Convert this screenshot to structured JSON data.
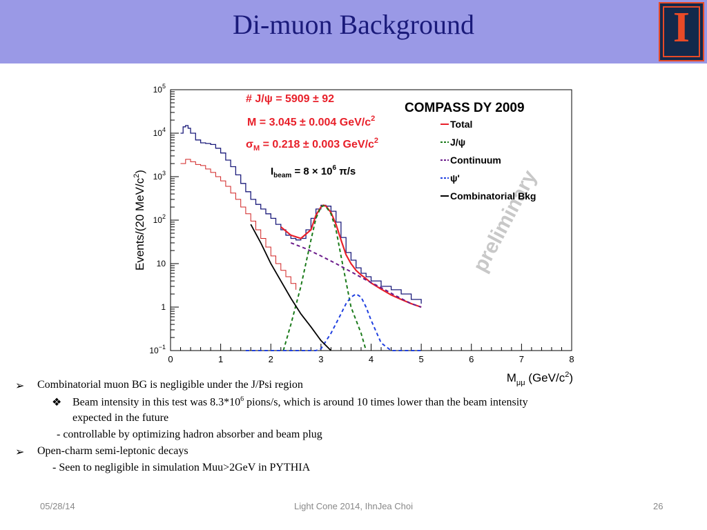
{
  "slide": {
    "title": "Di-muon Background",
    "logo_letter": "I",
    "bullets": [
      {
        "level": 1,
        "marker": "➢",
        "text": "Combinatorial muon BG is negligible under the J/Psi region"
      },
      {
        "level": 2,
        "marker": "❖",
        "text_before": "Beam intensity in this test was 8.3*10",
        "sup": "6",
        "text_after": " pions/s, which is around 10 times lower  than the beam  intensity",
        "continuation": "expected in the future"
      },
      {
        "level": 3,
        "marker": "",
        "text": "- controllable by optimizing hadron absorber and beam plug"
      },
      {
        "level": 1,
        "marker": "➢",
        "text": "Open-charm semi-leptonic decays"
      },
      {
        "level": 3,
        "marker": "",
        "text": "- Seen to negligible in simulation Muu>2GeV in PYTHIA"
      }
    ],
    "footer": {
      "date": "05/28/14",
      "center": "Light Cone 2014, IhnJea Choi",
      "page": "26"
    }
  },
  "chart_data": {
    "type": "line",
    "title": "COMPASS DY 2009",
    "watermark": "preliminary",
    "xlabel": "M",
    "xlabel_sub": "μμ",
    "xlabel_unit": " (GeV/c",
    "xlabel_unit_sup": "2",
    "xlabel_unit_close": ")",
    "ylabel": "Events/(20 MeV/c",
    "ylabel_sup": "2",
    "ylabel_close": ")",
    "xlim": [
      0,
      8
    ],
    "ylim_log10": [
      -1,
      5
    ],
    "yscale": "log",
    "x_ticks": [
      "0",
      "1",
      "2",
      "3",
      "4",
      "5",
      "6",
      "7",
      "8"
    ],
    "y_ticks": [
      {
        "base": "10",
        "exp": "−1"
      },
      {
        "base": "1",
        "exp": ""
      },
      {
        "base": "10",
        "exp": ""
      },
      {
        "base": "10",
        "exp": "2"
      },
      {
        "base": "10",
        "exp": "3"
      },
      {
        "base": "10",
        "exp": "4"
      },
      {
        "base": "10",
        "exp": "5"
      }
    ],
    "fit_results": [
      {
        "pre": "# J/",
        "greek": "ψ",
        "post": " = 5909 ",
        "pm": "±",
        "tail": " 92"
      },
      {
        "pre": "M = 3.045 ",
        "greek": "",
        "post": "",
        "pm": "±",
        "tail": " 0.004 GeV/c",
        "sup": "2"
      },
      {
        "pre": "",
        "greek": "σ",
        "sub": "M",
        "post": " = 0.218 ",
        "pm": "±",
        "tail": " 0.003 GeV/c",
        "sup": "2"
      }
    ],
    "beam_label": {
      "pre": "I",
      "sub": "beam",
      "post": " = 8 × 10",
      "sup": "6",
      "tail": " π/s"
    },
    "legend": [
      {
        "name": "Total",
        "color": "#e8202a",
        "dash": "solid"
      },
      {
        "name": "J/ψ",
        "color": "#1a7a1a",
        "dash": "dash"
      },
      {
        "name": "Continuum",
        "color": "#6a1a8a",
        "dash": "dash"
      },
      {
        "name": "ψ'",
        "color": "#2040e0",
        "dash": "dash"
      },
      {
        "name": "Combinatorial Bkg",
        "color": "#000000",
        "dash": "solid"
      }
    ],
    "series": [
      {
        "name": "Data",
        "color": "#1a1a7a",
        "x": [
          0.2,
          0.25,
          0.3,
          0.35,
          0.4,
          0.5,
          0.6,
          0.7,
          0.8,
          0.9,
          1.0,
          1.1,
          1.2,
          1.3,
          1.4,
          1.5,
          1.6,
          1.7,
          1.8,
          1.9,
          2.0,
          2.1,
          2.2,
          2.3,
          2.4,
          2.5,
          2.6,
          2.7,
          2.8,
          2.9,
          3.0,
          3.1,
          3.2,
          3.3,
          3.4,
          3.5,
          3.6,
          3.7,
          3.8,
          3.9,
          4.0,
          4.2,
          4.4,
          4.6,
          4.8,
          5.0
        ],
        "y": [
          10000,
          14000,
          15000,
          13000,
          10000,
          7000,
          6000,
          5800,
          5500,
          4500,
          3500,
          2400,
          1700,
          1100,
          700,
          450,
          300,
          230,
          180,
          140,
          110,
          80,
          60,
          45,
          38,
          35,
          38,
          60,
          110,
          180,
          220,
          210,
          160,
          90,
          40,
          18,
          12,
          8,
          6,
          5,
          4,
          3,
          2.5,
          2,
          1.5,
          1.2
        ]
      },
      {
        "name": "Total",
        "color": "#e8202a",
        "x": [
          2.2,
          2.4,
          2.6,
          2.8,
          2.9,
          3.0,
          3.05,
          3.1,
          3.2,
          3.3,
          3.4,
          3.5,
          3.6,
          3.7,
          3.8,
          3.9,
          4.0,
          4.2,
          4.4,
          4.6,
          4.8,
          5.0
        ],
        "y": [
          70,
          45,
          38,
          60,
          130,
          200,
          220,
          210,
          150,
          80,
          35,
          16,
          10,
          7,
          5.5,
          4.5,
          3.6,
          2.6,
          1.9,
          1.5,
          1.2,
          1.0
        ]
      },
      {
        "name": "J/ψ",
        "color": "#1a7a1a",
        "x": [
          2.25,
          2.4,
          2.6,
          2.8,
          2.9,
          3.0,
          3.05,
          3.1,
          3.2,
          3.3,
          3.4,
          3.6,
          3.8,
          3.9
        ],
        "y": [
          0.1,
          0.4,
          3,
          35,
          110,
          200,
          215,
          205,
          140,
          60,
          15,
          1,
          0.25,
          0.1
        ]
      },
      {
        "name": "Continuum",
        "color": "#6a1a8a",
        "x": [
          2.4,
          2.7,
          3.0,
          3.3,
          3.6,
          3.9,
          4.2,
          4.5,
          4.8,
          5.0
        ],
        "y": [
          30,
          22,
          15,
          10,
          6.5,
          4.2,
          2.8,
          1.8,
          1.2,
          1.0
        ]
      },
      {
        "name": "ψ'",
        "color": "#2040e0",
        "x": [
          1.5,
          2.5,
          2.9,
          3.0,
          3.2,
          3.4,
          3.5,
          3.6,
          3.7,
          3.8,
          3.9,
          4.0,
          4.2,
          4.4,
          5.0
        ],
        "y": [
          0.1,
          0.1,
          0.1,
          0.11,
          0.25,
          0.7,
          1.2,
          1.7,
          2.0,
          1.7,
          1.0,
          0.5,
          0.15,
          0.1,
          0.1
        ]
      },
      {
        "name": "Combinatorial Bkg",
        "color": "#000000",
        "x": [
          1.6,
          1.8,
          2.0,
          2.2,
          2.4,
          2.6,
          2.8,
          3.0,
          3.2
        ],
        "y": [
          80,
          30,
          10,
          4,
          1.6,
          0.7,
          0.35,
          0.17,
          0.1
        ]
      },
      {
        "name": "Sideband",
        "color": "#d02020",
        "x": [
          0.2,
          0.3,
          0.4,
          0.5,
          0.6,
          0.7,
          0.8,
          0.9,
          1.0,
          1.1,
          1.2,
          1.3,
          1.4,
          1.5,
          1.6,
          1.7,
          1.8,
          1.9,
          2.0,
          2.1,
          2.2,
          2.3,
          2.4,
          2.5
        ],
        "y": [
          2000,
          2500,
          2200,
          1900,
          1800,
          1500,
          1250,
          1000,
          800,
          600,
          420,
          300,
          200,
          140,
          95,
          60,
          38,
          24,
          15,
          10,
          7,
          5,
          3.5,
          2.5
        ]
      }
    ]
  }
}
